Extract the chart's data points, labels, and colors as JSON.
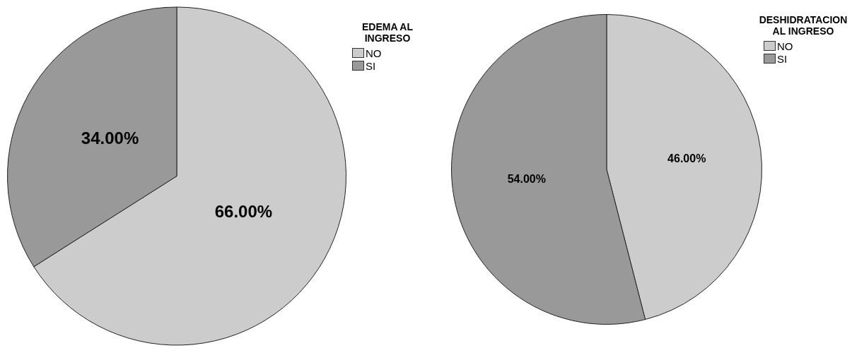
{
  "chart_data": [
    {
      "type": "pie",
      "legend_title": "EDEMA AL INGRESO",
      "categories": [
        "NO",
        "SI"
      ],
      "values": [
        66,
        34
      ],
      "colors": [
        "#cccccc",
        "#999999"
      ],
      "value_labels": [
        "66.00%",
        "34.00%"
      ],
      "legend": "top right"
    },
    {
      "type": "pie",
      "legend_title": "DESHIDRATACION AL INGRESO",
      "categories": [
        "NO",
        "SI"
      ],
      "values": [
        46,
        54
      ],
      "colors": [
        "#cccccc",
        "#999999"
      ],
      "value_labels": [
        "46.00%",
        "54.00%"
      ],
      "legend": "top right"
    }
  ]
}
